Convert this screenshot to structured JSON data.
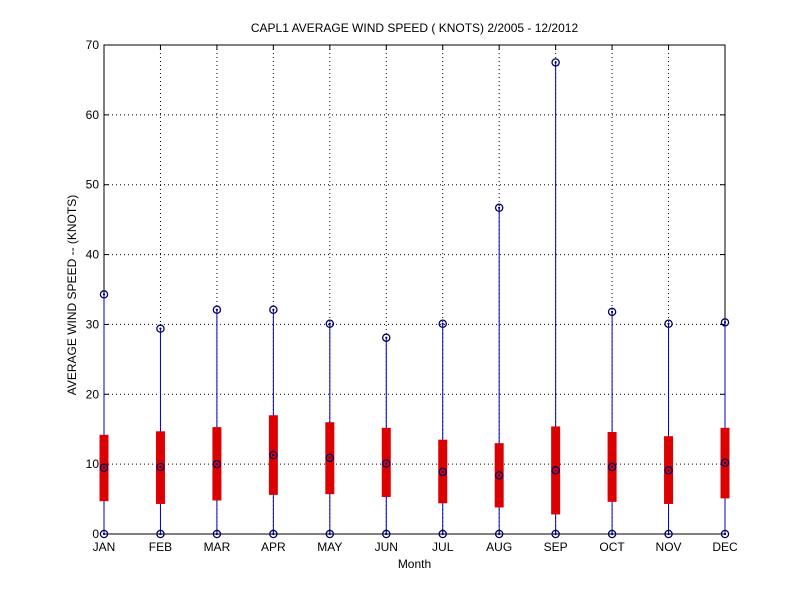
{
  "chart_data": {
    "type": "box",
    "title": "CAPL1  AVERAGE WIND SPEED ( KNOTS) 2/2005 - 12/2012",
    "xlabel": "Month",
    "ylabel": "AVERAGE WIND SPEED -- (KNOTS)",
    "ylim": [
      0,
      70
    ],
    "yticks": [
      0,
      10,
      20,
      30,
      40,
      50,
      60,
      70
    ],
    "grid": true,
    "categories": [
      "JAN",
      "FEB",
      "MAR",
      "APR",
      "MAY",
      "JUN",
      "JUL",
      "AUG",
      "SEP",
      "OCT",
      "NOV",
      "DEC"
    ],
    "min": [
      0,
      0,
      0,
      0,
      0,
      0,
      0,
      0,
      0,
      0,
      0,
      0
    ],
    "q1": [
      4.7,
      4.3,
      4.8,
      5.6,
      5.7,
      5.3,
      4.4,
      3.8,
      2.8,
      4.6,
      4.3,
      5.1
    ],
    "median": [
      9.5,
      9.6,
      10.0,
      11.3,
      10.9,
      10.1,
      8.9,
      8.4,
      9.1,
      9.6,
      9.1,
      10.2
    ],
    "q3": [
      14.2,
      14.7,
      15.3,
      17.0,
      16.0,
      15.2,
      13.5,
      13.0,
      15.4,
      14.6,
      14.0,
      15.2
    ],
    "max": [
      34.3,
      29.4,
      32.1,
      32.1,
      30.1,
      28.1,
      30.1,
      46.7,
      67.5,
      31.8,
      30.1,
      30.3
    ],
    "colors": {
      "whisker": "#0000cc",
      "box": "#dd0000",
      "marker": "#000066",
      "grid": "#000000"
    }
  }
}
